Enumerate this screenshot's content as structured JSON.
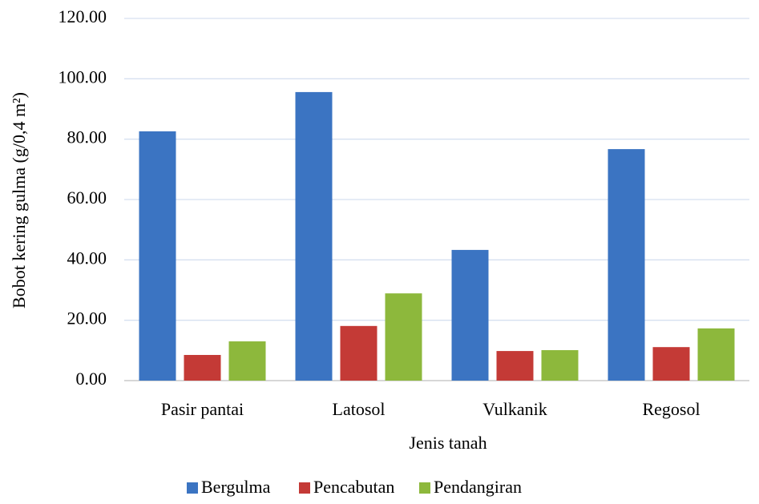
{
  "chart_data": {
    "type": "bar",
    "x_label": "Jenis tanah",
    "y_label": "Bobot kering gulma (g/0,4 m²)",
    "categories": [
      "Pasir pantai",
      "Latosol",
      "Vulkanik",
      "Regosol"
    ],
    "series": [
      {
        "name": "Bergulma",
        "color": "#3b74c2",
        "values": [
          82.6,
          95.6,
          43.3,
          76.7
        ]
      },
      {
        "name": "Pencabutan",
        "color": "#c43a36",
        "values": [
          8.5,
          18.1,
          9.8,
          11.1
        ]
      },
      {
        "name": "Pendangiran",
        "color": "#8db83c",
        "values": [
          13.0,
          28.9,
          10.1,
          17.3
        ]
      }
    ],
    "ylim": [
      0,
      120
    ],
    "yticks": [
      {
        "value": 0,
        "label": "0.00"
      },
      {
        "value": 20,
        "label": "20.00"
      },
      {
        "value": 40,
        "label": "40.00"
      },
      {
        "value": 60,
        "label": "60.00"
      },
      {
        "value": 80,
        "label": "80.00"
      },
      {
        "value": 100,
        "label": "100.00"
      },
      {
        "value": 120,
        "label": "120.00"
      }
    ],
    "grid": true,
    "legend": "bottom"
  }
}
